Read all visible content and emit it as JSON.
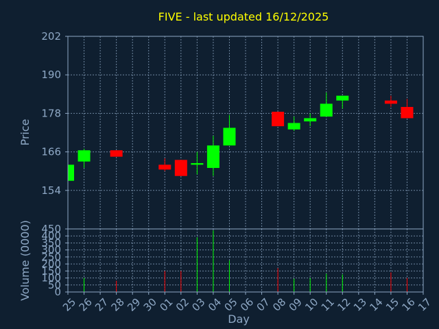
{
  "chart_data": {
    "type": "candlestick",
    "title": "FIVE - last updated 16/12/2025",
    "xlabel": "Day",
    "ylabel": "Price",
    "volume_label": "Volume (0000)",
    "x_ticks": [
      "25",
      "26",
      "27",
      "28",
      "29",
      "30",
      "01",
      "02",
      "03",
      "04",
      "05",
      "06",
      "07",
      "08",
      "09",
      "10",
      "11",
      "12",
      "13",
      "14",
      "15",
      "16",
      "17"
    ],
    "price_ticks": [
      154,
      166,
      178,
      190,
      202
    ],
    "price_range": [
      142,
      202
    ],
    "volume_ticks": [
      0,
      50,
      100,
      150,
      200,
      250,
      300,
      350,
      400,
      450
    ],
    "volume_range": [
      0,
      450
    ],
    "grid": true,
    "up_color": "#00ff00",
    "down_color": "#ff0000",
    "candles": [
      {
        "day": "25",
        "open": 157,
        "high": 163,
        "low": 157,
        "close": 162,
        "volume": 0
      },
      {
        "day": "26",
        "open": 163,
        "high": 167,
        "low": 161,
        "close": 166.5,
        "volume": 100
      },
      {
        "day": "28",
        "open": 166.5,
        "high": 166.5,
        "low": 164.5,
        "close": 164.5,
        "volume": 80
      },
      {
        "day": "01",
        "open": 162,
        "high": 164,
        "low": 160,
        "close": 160.5,
        "volume": 150
      },
      {
        "day": "02",
        "open": 163.5,
        "high": 163.5,
        "low": 158.5,
        "close": 158.5,
        "volume": 150
      },
      {
        "day": "03",
        "open": 162,
        "high": 166,
        "low": 159,
        "close": 162.5,
        "volume": 390
      },
      {
        "day": "04",
        "open": 161,
        "high": 171,
        "low": 158.5,
        "close": 168,
        "volume": 440
      },
      {
        "day": "05",
        "open": 168,
        "high": 177.5,
        "low": 168,
        "close": 173.5,
        "volume": 225
      },
      {
        "day": "08",
        "open": 178.5,
        "high": 178.5,
        "low": 174,
        "close": 174,
        "volume": 170
      },
      {
        "day": "09",
        "open": 173,
        "high": 177,
        "low": 172.5,
        "close": 175,
        "volume": 95
      },
      {
        "day": "10",
        "open": 175.5,
        "high": 178,
        "low": 174,
        "close": 176.5,
        "volume": 100
      },
      {
        "day": "11",
        "open": 177,
        "high": 184.5,
        "low": 177,
        "close": 181,
        "volume": 130
      },
      {
        "day": "12",
        "open": 182,
        "high": 183.5,
        "low": 179.5,
        "close": 183.5,
        "volume": 125
      },
      {
        "day": "15",
        "open": 182,
        "high": 183.5,
        "low": 180,
        "close": 181,
        "volume": 140
      },
      {
        "day": "16",
        "open": 180,
        "high": 182.5,
        "low": 176.5,
        "close": 176.5,
        "volume": 100
      }
    ]
  }
}
